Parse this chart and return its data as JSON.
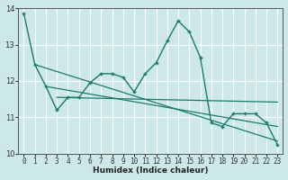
{
  "title": "",
  "xlabel": "Humidex (Indice chaleur)",
  "ylabel": "",
  "bg_color": "#cce8e8",
  "grid_color": "#b0d8d8",
  "line_color": "#1a7a6e",
  "xlim": [
    -0.5,
    23.5
  ],
  "ylim": [
    10,
    14
  ],
  "yticks": [
    10,
    11,
    12,
    13,
    14
  ],
  "xticks": [
    0,
    1,
    2,
    3,
    4,
    5,
    6,
    7,
    8,
    9,
    10,
    11,
    12,
    13,
    14,
    15,
    16,
    17,
    18,
    19,
    20,
    21,
    22,
    23
  ],
  "series1_x": [
    0,
    1,
    2,
    3,
    4,
    5,
    6,
    7,
    8,
    9,
    10,
    11,
    12,
    13,
    14,
    15,
    16,
    17,
    18,
    19,
    20,
    21,
    22,
    23
  ],
  "series1_y": [
    13.85,
    12.45,
    11.85,
    11.2,
    11.55,
    11.55,
    11.95,
    12.2,
    12.2,
    12.1,
    11.7,
    12.2,
    12.5,
    13.1,
    13.65,
    13.35,
    12.65,
    10.85,
    10.75,
    11.1,
    11.1,
    11.1,
    10.85,
    10.25
  ],
  "series2_x": [
    1,
    23
  ],
  "series2_y": [
    12.45,
    10.35
  ],
  "series3_x": [
    2,
    23
  ],
  "series3_y": [
    11.85,
    10.75
  ],
  "series4_x": [
    3,
    23
  ],
  "series4_y": [
    11.55,
    11.42
  ]
}
